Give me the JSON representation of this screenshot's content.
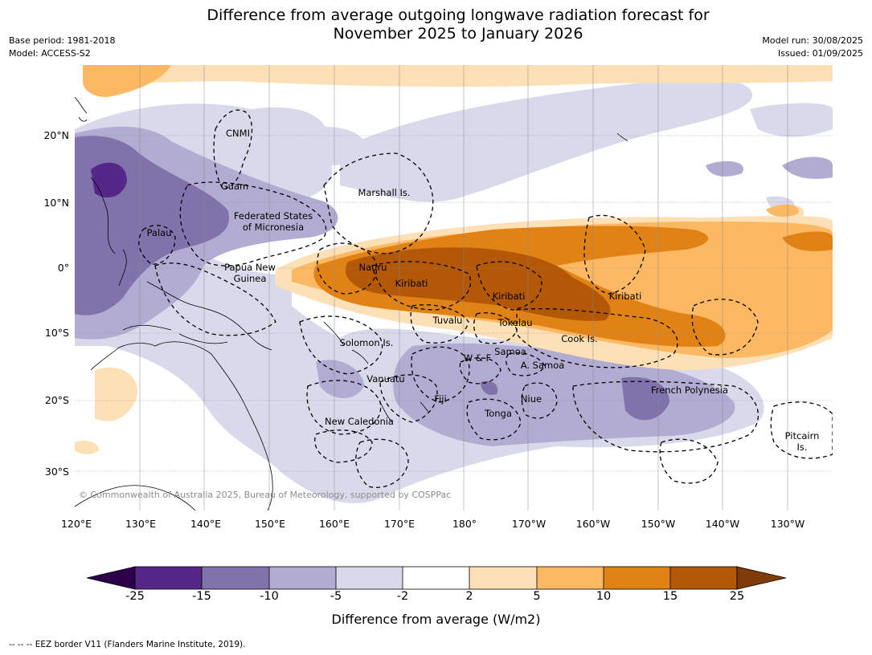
{
  "title": {
    "line1": "Difference from average outgoing longwave radiation forecast for",
    "line2": "November 2025 to January 2026"
  },
  "meta": {
    "base_period": "Base period: 1981-2018",
    "model": "Model: ACCESS-S2",
    "model_run": "Model run: 30/08/2025",
    "issued": "Issued: 01/09/2025"
  },
  "lat_ticks": [
    "20°N",
    "10°N",
    "0°",
    "10°S",
    "20°S",
    "30°S"
  ],
  "lon_ticks": [
    "120°E",
    "130°E",
    "140°E",
    "150°E",
    "160°E",
    "170°E",
    "180°",
    "170°W",
    "160°W",
    "150°W",
    "140°W",
    "130°W"
  ],
  "regions": {
    "cnmi": "CNMI",
    "guam": "Guam",
    "marshall": "Marshall Is.",
    "fsm": "Federated States\nof Micronesia",
    "palau": "Palau",
    "png": "Papua New\nGuinea",
    "nauru": "Nauru",
    "kiribati_w": "Kiribati",
    "kiribati_c": "Kiribati",
    "kiribati_e": "Kiribati",
    "tuvalu": "Tuvalu",
    "tokelau": "Tokelau",
    "cook": "Cook Is.",
    "solomon": "Solomon Is.",
    "wf": "W & F",
    "samoa": "Samoa",
    "asamoa": "A. Samoa",
    "vanuatu": "Vanuatu",
    "fiji": "Fiji",
    "niue": "Niue",
    "tonga": "Tonga",
    "french_polynesia": "French Polynesia",
    "new_caledonia": "New Caledonia",
    "pitcairn": "Pitcairn\nIs."
  },
  "copyright": "© Commonwealth of Australia 2025, Bureau of Meteorology, supported by COSPPac",
  "colorbar": {
    "levels": [
      "-25",
      "-15",
      "-10",
      "-5",
      "-2",
      "2",
      "5",
      "10",
      "15",
      "25"
    ],
    "colors": [
      "#2d004b",
      "#542788",
      "#8073ac",
      "#b2abd2",
      "#d8daeb",
      "#ffffff",
      "#fee0b6",
      "#fdb863",
      "#e08214",
      "#b35806",
      "#7f3b08"
    ],
    "label": "Difference from average (W/m2)"
  },
  "footnote": "--  --  -- EEZ border V11 (Flanders Marine Institute, 2019)."
}
